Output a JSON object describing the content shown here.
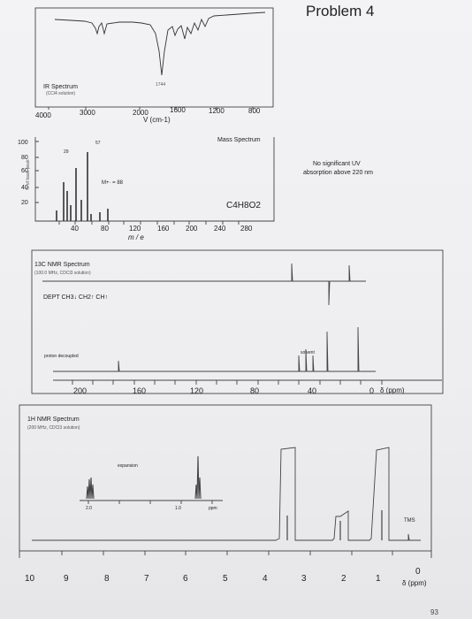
{
  "problem_title": "Problem 4",
  "ir": {
    "label": "IR Spectrum",
    "solvent": "(CCl4 solution)",
    "peak_label": "1744",
    "ticks": [
      "4000",
      "3000",
      "2000",
      "1600",
      "1200",
      "800"
    ],
    "axis_label": "V (cm-1)"
  },
  "uv_note": {
    "line1": "No significant UV",
    "line2": "absorption above 220 nm"
  },
  "mass": {
    "label": "Mass Spectrum",
    "y_axis_label": "% of base peak",
    "y_ticks": [
      "100",
      "80",
      "60",
      "40",
      "20"
    ],
    "x_ticks": [
      "40",
      "80",
      "120",
      "160",
      "200",
      "240",
      "280"
    ],
    "x_label": "m / e",
    "peak_labels": [
      "29",
      "57"
    ],
    "molecular_ion": "M+· = 88",
    "formula": "C4H8O2"
  },
  "c13": {
    "label": "13C NMR Spectrum",
    "conditions": "(100.0 MHz, CDCl3 solution)",
    "dept": "DEPT  CH3↓ CH2↑ CH↑",
    "proton_decoupled": "proton decoupled",
    "solvent": "solvent",
    "ticks": [
      "200",
      "160",
      "120",
      "80",
      "40",
      "0"
    ],
    "axis_unit": "δ (ppm)"
  },
  "h1": {
    "label": "1H NMR Spectrum",
    "conditions": "(200 MHz, CDCl3 solution)",
    "expansion": "expansion",
    "inset_ticks": [
      "2.0",
      "1.0"
    ],
    "inset_unit": "ppm",
    "tms": "TMS",
    "ticks": [
      "10",
      "9",
      "8",
      "7",
      "6",
      "5",
      "4",
      "3",
      "2",
      "1",
      "0"
    ],
    "axis_unit": "δ (ppm)"
  },
  "page_number": "93"
}
